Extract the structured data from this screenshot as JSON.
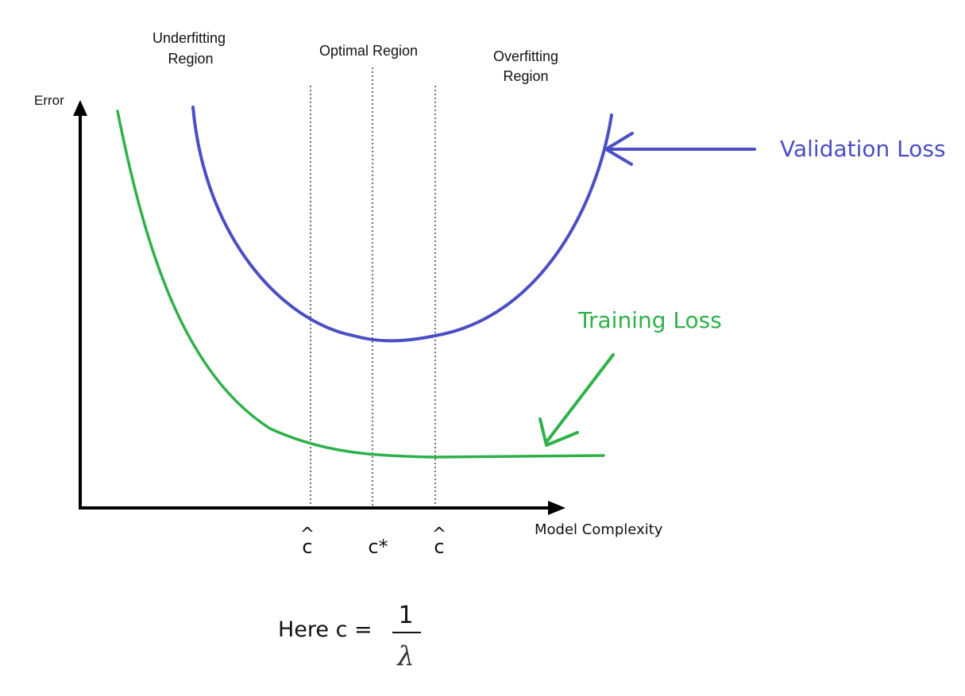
{
  "regions": {
    "underfitting_line1": "Underfitting",
    "underfitting_line2": "Region",
    "optimal": "Optimal Region",
    "overfitting_line1": "Overfitting",
    "overfitting_line2": "Region"
  },
  "axes": {
    "y_label": "Error",
    "x_label": "Model Complexity"
  },
  "markers": {
    "c_hat_left": "c",
    "c_hat_left_accent": "^",
    "c_star": "c*",
    "c_hat_right": "c",
    "c_hat_right_accent": "^"
  },
  "legend": {
    "validation": "Validation Loss",
    "training": "Training Loss"
  },
  "formula": {
    "prefix": "Here c =",
    "numerator": "1",
    "denominator": "λ"
  },
  "colors": {
    "validation": "#4a4fc4",
    "training": "#2fb14a",
    "axis": "#000000",
    "text": "#111111"
  }
}
